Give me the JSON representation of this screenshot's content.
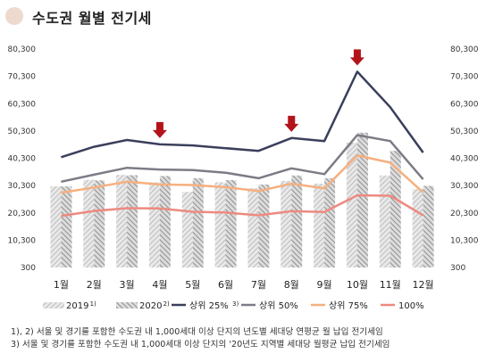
{
  "header": {
    "title": "수도권 월별 전기세"
  },
  "chart_data": {
    "type": "bar",
    "categories": [
      "1월",
      "2월",
      "3월",
      "4월",
      "5월",
      "6월",
      "7월",
      "8월",
      "9월",
      "10월",
      "11월",
      "12월"
    ],
    "ylim": [
      300,
      80300
    ],
    "yticks": [
      "300",
      "10,300",
      "20,300",
      "30,300",
      "40,300",
      "50,300",
      "60,300",
      "70,300",
      "80,300"
    ],
    "bar_series": [
      {
        "name": "2019",
        "sup": "1)",
        "values": [
          30000,
          32400,
          34200,
          31500,
          28000,
          31500,
          29300,
          32000,
          31000,
          46000,
          34000,
          29000
        ],
        "color": "#c2c2c2"
      },
      {
        "name": "2020",
        "sup": "2)",
        "values": [
          30000,
          32200,
          34100,
          33800,
          33000,
          32300,
          30700,
          34000,
          33000,
          49700,
          43000,
          30200
        ],
        "color": "#9a9a9a"
      }
    ],
    "line_series": [
      {
        "name": "상위 25%",
        "sup": "3)",
        "values": [
          40700,
          44500,
          47000,
          45400,
          45000,
          44000,
          43000,
          47700,
          46600,
          72000,
          59000,
          42400
        ],
        "color": "#3a3f5c"
      },
      {
        "name": "상위 50%",
        "values": [
          31700,
          34300,
          36800,
          36200,
          36000,
          35000,
          33000,
          36600,
          34500,
          48800,
          46600,
          32600
        ],
        "color": "#7b7c86"
      },
      {
        "name": "상위 75%",
        "values": [
          27700,
          29600,
          31700,
          30700,
          30500,
          29700,
          28300,
          31000,
          29300,
          41300,
          38700,
          27800
        ],
        "color": "#f5b07f"
      },
      {
        "name": "100%",
        "values": [
          19200,
          21000,
          22000,
          21900,
          20700,
          20400,
          19400,
          20900,
          20600,
          26700,
          26600,
          19400
        ],
        "color": "#ee8a80"
      }
    ],
    "markers": {
      "positions": [
        "4월",
        "8월",
        "10월"
      ],
      "color": "#b3141b"
    }
  },
  "footnotes": [
    "1), 2) 서울 및 경기를 포함한 수도권 내 1,000세대 이상 단지의 년도별 세대당 연평균 월 납입 전기세임",
    "3) 서울 및 경기를 포함한 수도권 내 1,000세대 이상 단지의 '20년도 지역별 세대당 월평균 납입 전기세임"
  ]
}
